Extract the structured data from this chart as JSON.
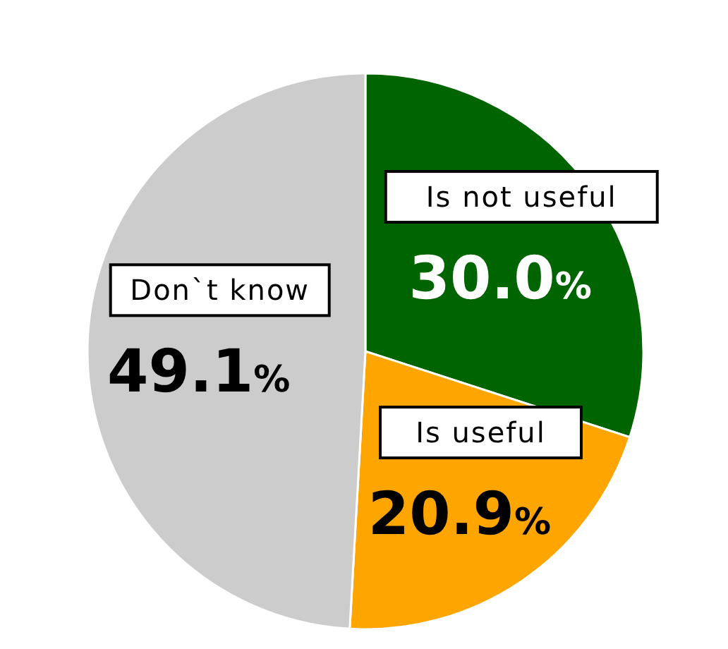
{
  "chart_data": {
    "type": "pie",
    "categories": [
      "Is not useful",
      "Is useful",
      "Don`t know"
    ],
    "values": [
      30.0,
      20.9,
      49.1
    ],
    "colors": [
      "#006400",
      "#ffa500",
      "#cccccc"
    ],
    "value_labels": [
      "30.0%",
      "20.9%",
      "49.1%"
    ]
  }
}
